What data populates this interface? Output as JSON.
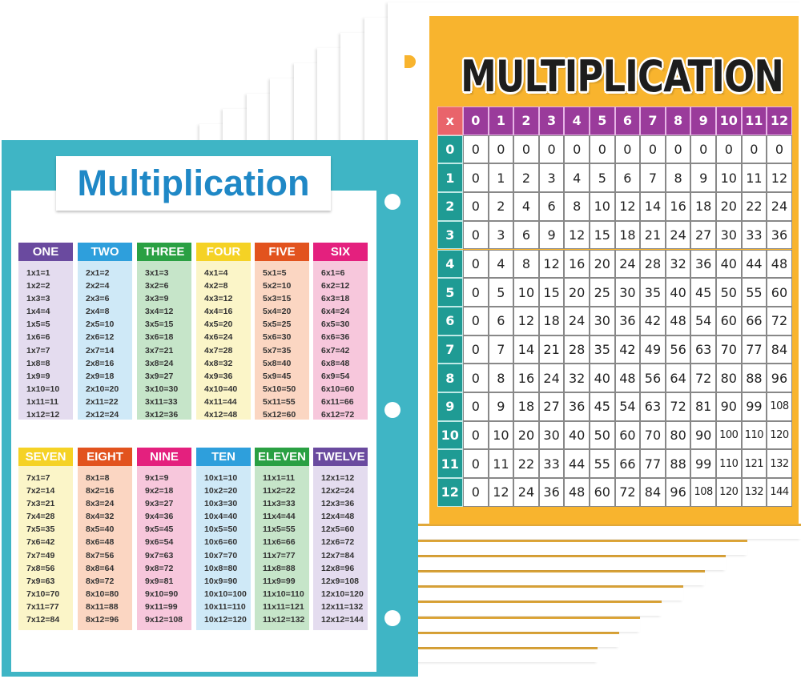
{
  "colors": {
    "teal": "#3fb5c5",
    "title_blue": "#1f88c6",
    "orange": "#f8b42e",
    "grid_header": "#9a3b9b",
    "grid_row_header": "#1f9b94",
    "grid_corner": "#e9646b"
  },
  "left_chart": {
    "title": "Multiplication",
    "columns": [
      {
        "label": "ONE",
        "head": "#6a4a9f",
        "body": "#e4dcef",
        "facts": [
          "1x1=1",
          "1x2=2",
          "1x3=3",
          "1x4=4",
          "1x5=5",
          "1x6=6",
          "1x7=7",
          "1x8=8",
          "1x9=9",
          "1x10=10",
          "1x11=11",
          "1x12=12"
        ]
      },
      {
        "label": "TWO",
        "head": "#2e9fdc",
        "body": "#cfe9f7",
        "facts": [
          "2x1=2",
          "2x2=4",
          "2x3=6",
          "2x4=8",
          "2x5=10",
          "2x6=12",
          "2x7=14",
          "2x8=16",
          "2x9=18",
          "2x10=20",
          "2x11=22",
          "2x12=24"
        ]
      },
      {
        "label": "THREE",
        "head": "#2aa043",
        "body": "#c6e5c9",
        "facts": [
          "3x1=3",
          "3x2=6",
          "3x3=9",
          "3x4=12",
          "3x5=15",
          "3x6=18",
          "3x7=21",
          "3x8=24",
          "3x9=27",
          "3x10=30",
          "3x11=33",
          "3x12=36"
        ]
      },
      {
        "label": "FOUR",
        "head": "#f5d225",
        "body": "#fbf5c8",
        "facts": [
          "4x1=4",
          "4x2=8",
          "4x3=12",
          "4x4=16",
          "4x5=20",
          "4x6=24",
          "4x7=28",
          "4x8=32",
          "4x9=36",
          "4x10=40",
          "4x11=44",
          "4x12=48"
        ]
      },
      {
        "label": "FIVE",
        "head": "#e2531e",
        "body": "#fbd6c2",
        "facts": [
          "5x1=5",
          "5x2=10",
          "5x3=15",
          "5x4=20",
          "5x5=25",
          "5x6=30",
          "5x7=35",
          "5x8=40",
          "5x9=45",
          "5x10=50",
          "5x11=55",
          "5x12=60"
        ]
      },
      {
        "label": "SIX",
        "head": "#e4207e",
        "body": "#f7c7dc",
        "facts": [
          "6x1=6",
          "6x2=12",
          "6x3=18",
          "6x4=24",
          "6x5=30",
          "6x6=36",
          "6x7=42",
          "6x8=48",
          "6x9=54",
          "6x10=60",
          "6x11=66",
          "6x12=72"
        ]
      },
      {
        "label": "SEVEN",
        "head": "#f5d225",
        "body": "#fbf5c8",
        "facts": [
          "7x1=7",
          "7x2=14",
          "7x3=21",
          "7x4=28",
          "7x5=35",
          "7x6=42",
          "7x7=49",
          "7x8=56",
          "7x9=63",
          "7x10=70",
          "7x11=77",
          "7x12=84"
        ]
      },
      {
        "label": "EIGHT",
        "head": "#e2531e",
        "body": "#fbd6c2",
        "facts": [
          "8x1=8",
          "8x2=16",
          "8x3=24",
          "8x4=32",
          "8x5=40",
          "8x6=48",
          "8x7=56",
          "8x8=64",
          "8x9=72",
          "8x10=80",
          "8x11=88",
          "8x12=96"
        ]
      },
      {
        "label": "NINE",
        "head": "#e4207e",
        "body": "#f7c7dc",
        "facts": [
          "9x1=9",
          "9x2=18",
          "9x3=27",
          "9x4=36",
          "9x5=45",
          "9x6=54",
          "9x7=63",
          "9x8=72",
          "9x9=81",
          "9x10=90",
          "9x11=99",
          "9x12=108"
        ]
      },
      {
        "label": "TEN",
        "head": "#2e9fdc",
        "body": "#cfe9f7",
        "facts": [
          "10x1=10",
          "10x2=20",
          "10x3=30",
          "10x4=40",
          "10x5=50",
          "10x6=60",
          "10x7=70",
          "10x8=80",
          "10x9=90",
          "10x10=100",
          "10x11=110",
          "10x12=120"
        ]
      },
      {
        "label": "ELEVEN",
        "head": "#2aa043",
        "body": "#c6e5c9",
        "facts": [
          "11x1=11",
          "11x2=22",
          "11x3=33",
          "11x4=44",
          "11x5=55",
          "11x6=66",
          "11x7=77",
          "11x8=88",
          "11x9=99",
          "11x10=110",
          "11x11=121",
          "11x12=132"
        ]
      },
      {
        "label": "TWELVE",
        "head": "#6a4a9f",
        "body": "#e4dcef",
        "facts": [
          "12x1=12",
          "12x2=24",
          "12x3=36",
          "12x4=48",
          "12x5=60",
          "12x6=72",
          "12x7=84",
          "12x8=96",
          "12x9=108",
          "12x10=120",
          "12x11=132",
          "12x12=144"
        ]
      }
    ]
  },
  "right_chart": {
    "title": "MULTIPLICATION",
    "corner": "x",
    "column_headers": [
      "0",
      "1",
      "2",
      "3",
      "4",
      "5",
      "6",
      "7",
      "8",
      "9",
      "10",
      "11",
      "12"
    ],
    "row_headers": [
      "0",
      "1",
      "2",
      "3",
      "4",
      "5",
      "6",
      "7",
      "8",
      "9",
      "10",
      "11",
      "12"
    ],
    "rows": [
      [
        "0",
        "0",
        "0",
        "0",
        "0",
        "0",
        "0",
        "0",
        "0",
        "0",
        "0",
        "0",
        "0"
      ],
      [
        "0",
        "1",
        "2",
        "3",
        "4",
        "5",
        "6",
        "7",
        "8",
        "9",
        "10",
        "11",
        "12"
      ],
      [
        "0",
        "2",
        "4",
        "6",
        "8",
        "10",
        "12",
        "14",
        "16",
        "18",
        "20",
        "22",
        "24"
      ],
      [
        "0",
        "3",
        "6",
        "9",
        "12",
        "15",
        "18",
        "21",
        "24",
        "27",
        "30",
        "33",
        "36"
      ],
      [
        "0",
        "4",
        "8",
        "12",
        "16",
        "20",
        "24",
        "28",
        "32",
        "36",
        "40",
        "44",
        "48"
      ],
      [
        "0",
        "5",
        "10",
        "15",
        "20",
        "25",
        "30",
        "35",
        "40",
        "45",
        "50",
        "55",
        "60"
      ],
      [
        "0",
        "6",
        "12",
        "18",
        "24",
        "30",
        "36",
        "42",
        "48",
        "54",
        "60",
        "66",
        "72"
      ],
      [
        "0",
        "7",
        "14",
        "21",
        "28",
        "35",
        "42",
        "49",
        "56",
        "63",
        "70",
        "77",
        "84"
      ],
      [
        "0",
        "8",
        "16",
        "24",
        "32",
        "40",
        "48",
        "56",
        "64",
        "72",
        "80",
        "88",
        "96"
      ],
      [
        "0",
        "9",
        "18",
        "27",
        "36",
        "45",
        "54",
        "63",
        "72",
        "81",
        "90",
        "99",
        "108"
      ],
      [
        "0",
        "10",
        "20",
        "30",
        "40",
        "50",
        "60",
        "70",
        "80",
        "90",
        "100",
        "110",
        "120"
      ],
      [
        "0",
        "11",
        "22",
        "33",
        "44",
        "55",
        "66",
        "77",
        "88",
        "99",
        "110",
        "121",
        "132"
      ],
      [
        "0",
        "12",
        "24",
        "36",
        "48",
        "60",
        "72",
        "84",
        "96",
        "108",
        "120",
        "132",
        "144"
      ]
    ]
  }
}
